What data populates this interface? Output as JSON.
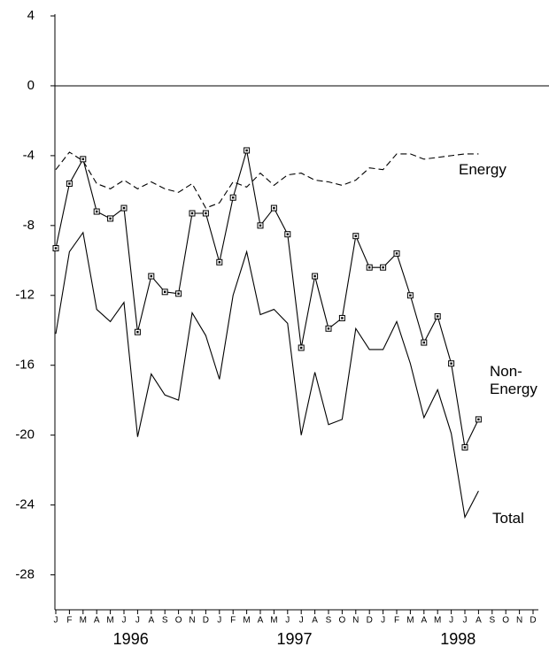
{
  "chart_data": {
    "type": "line",
    "categories": [
      "J",
      "F",
      "M",
      "A",
      "M",
      "J",
      "J",
      "A",
      "S",
      "O",
      "N",
      "D",
      "J",
      "F",
      "M",
      "A",
      "M",
      "J",
      "J",
      "A",
      "S",
      "O",
      "N",
      "D",
      "J",
      "F",
      "M",
      "A",
      "M",
      "J",
      "J",
      "A",
      "S",
      "O",
      "N",
      "D"
    ],
    "groups": [
      "1996",
      "1997",
      "1998"
    ],
    "series": [
      {
        "name": "Energy",
        "color": "#000000",
        "dashed": true,
        "markers": false,
        "values": [
          -4.8,
          -3.8,
          -4.3,
          -5.6,
          -5.9,
          -5.4,
          -5.9,
          -5.5,
          -5.9,
          -6.1,
          -5.6,
          -7.0,
          -6.7,
          -5.5,
          -5.8,
          -5.0,
          -5.7,
          -5.1,
          -5.0,
          -5.4,
          -5.5,
          -5.7,
          -5.4,
          -4.7,
          -4.8,
          -3.9,
          -3.9,
          -4.2,
          -4.1,
          -4.0,
          -3.9,
          -3.9,
          null,
          null,
          null,
          null
        ]
      },
      {
        "name": "Non-Energy",
        "color": "#000000",
        "dashed": false,
        "markers": true,
        "values": [
          -9.3,
          -5.6,
          -4.2,
          -7.2,
          -7.6,
          -7.0,
          -14.1,
          -10.9,
          -11.8,
          -11.9,
          -7.3,
          -7.3,
          -10.1,
          -6.4,
          -3.7,
          -8.0,
          -7.0,
          -8.5,
          -15.0,
          -10.9,
          -13.9,
          -13.3,
          -8.6,
          -10.4,
          -10.4,
          -9.6,
          -12.0,
          -14.7,
          -13.2,
          -15.9,
          -20.7,
          -19.1,
          null,
          null,
          null,
          null
        ]
      },
      {
        "name": "Total",
        "color": "#000000",
        "dashed": false,
        "markers": false,
        "values": [
          -14.2,
          -9.5,
          -8.4,
          -12.8,
          -13.5,
          -12.4,
          -20.1,
          -16.5,
          -17.7,
          -18.0,
          -13.0,
          -14.3,
          -16.8,
          -12.0,
          -9.5,
          -13.1,
          -12.8,
          -13.6,
          -20.0,
          -16.4,
          -19.4,
          -19.1,
          -13.9,
          -15.1,
          -15.1,
          -13.5,
          -15.9,
          -19.0,
          -17.4,
          -19.9,
          -24.7,
          -23.2,
          null,
          null,
          null,
          null
        ]
      }
    ],
    "ylim": [
      -30,
      4
    ],
    "yticks": [
      4,
      0,
      -4,
      -8,
      -12,
      -16,
      -20,
      -24,
      -28
    ],
    "grid": false
  }
}
